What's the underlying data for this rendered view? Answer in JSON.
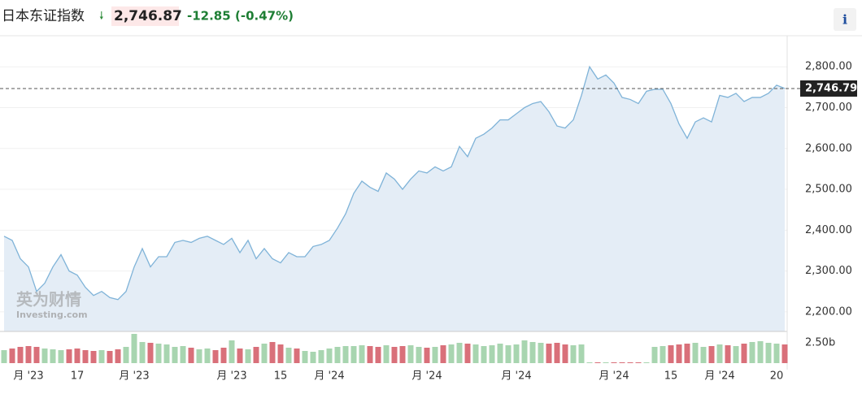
{
  "chart_data": {
    "type": "line",
    "title": "日本东证指数",
    "last": {
      "value": 2746.87,
      "label": "2,746.87"
    },
    "change": {
      "value": -12.85,
      "label": "-12.85"
    },
    "change_pct": {
      "value": -0.47,
      "label": "(-0.47%)"
    },
    "current_marker": {
      "value": 2746.79,
      "label": "2,746.79"
    },
    "info_button": "i",
    "watermark": [
      "英为财情",
      "Investing.com"
    ],
    "categories": [
      null,
      null,
      null,
      "月 '23",
      null,
      null,
      null,
      null,
      null,
      "17",
      null,
      null,
      null,
      null,
      null,
      null,
      "月 '23",
      null,
      null,
      null,
      null,
      null,
      null,
      null,
      null,
      null,
      null,
      null,
      "月 '23",
      null,
      null,
      null,
      null,
      null,
      "15",
      null,
      null,
      null,
      null,
      null,
      "月 '24",
      null,
      null,
      null,
      null,
      null,
      null,
      null,
      null,
      null,
      null,
      null,
      "月 '24",
      null,
      null,
      null,
      null,
      null,
      null,
      null,
      null,
      null,
      null,
      "月 '24",
      null,
      null,
      null,
      null,
      null,
      null,
      null,
      null,
      null,
      null,
      null,
      "月 '24",
      null,
      null,
      null,
      null,
      null,
      null,
      "15",
      null,
      null,
      null,
      null,
      null,
      "月 '24",
      null,
      null,
      null,
      null,
      null,
      null,
      "20",
      null
    ],
    "series": [
      {
        "color": "#7fb3d8",
        "fill": "#e4edf6",
        "values": [
          2385,
          2375,
          2330,
          2310,
          2250,
          2270,
          2310,
          2340,
          2300,
          2290,
          2260,
          2240,
          2250,
          2235,
          2230,
          2250,
          2310,
          2355,
          2310,
          2335,
          2335,
          2370,
          2375,
          2370,
          2380,
          2385,
          2375,
          2365,
          2380,
          2345,
          2375,
          2330,
          2355,
          2330,
          2320,
          2345,
          2335,
          2335,
          2360,
          2365,
          2375,
          2405,
          2440,
          2490,
          2520,
          2505,
          2495,
          2540,
          2525,
          2500,
          2525,
          2545,
          2540,
          2555,
          2545,
          2555,
          2605,
          2580,
          2625,
          2635,
          2650,
          2670,
          2670,
          2685,
          2700,
          2710,
          2715,
          2690,
          2655,
          2650,
          2670,
          2730,
          2800,
          2770,
          2780,
          2760,
          2725,
          2720,
          2710,
          2740,
          2745,
          2745,
          2710,
          2660,
          2625,
          2665,
          2675,
          2665,
          2730,
          2725,
          2735,
          2715,
          2725,
          2725,
          2735,
          2755,
          2747
        ]
      }
    ],
    "ylim": [
      2152,
      2876
    ],
    "yticks": [
      {
        "value": 2200,
        "label": "2,200.00"
      },
      {
        "value": 2300,
        "label": "2,300.00"
      },
      {
        "value": 2400,
        "label": "2,400.00"
      },
      {
        "value": 2500,
        "label": "2,500.00"
      },
      {
        "value": 2600,
        "label": "2,600.00"
      },
      {
        "value": 2700,
        "label": "2,700.00"
      },
      {
        "value": 2800,
        "label": "2,800.00"
      }
    ],
    "volume": {
      "up_color": "#a8d5b0",
      "down_color": "#d9707a",
      "ylim": [
        0,
        3.7
      ],
      "yticks": [
        {
          "value": 2.5,
          "label": "2.50b"
        }
      ],
      "values": [
        1.6,
        1.8,
        2.0,
        2.1,
        2.0,
        1.8,
        1.7,
        1.6,
        1.7,
        1.8,
        1.6,
        1.5,
        1.6,
        1.5,
        1.7,
        2.0,
        3.6,
        2.6,
        2.5,
        2.4,
        2.3,
        2.0,
        2.1,
        1.9,
        1.7,
        1.8,
        1.6,
        1.9,
        2.8,
        1.8,
        1.7,
        2.0,
        2.4,
        2.6,
        2.3,
        1.9,
        1.8,
        1.5,
        1.4,
        1.6,
        1.8,
        2.0,
        2.1,
        2.1,
        2.2,
        2.1,
        2.0,
        2.2,
        2.0,
        2.1,
        2.2,
        2.0,
        1.9,
        2.0,
        2.2,
        2.3,
        2.5,
        2.4,
        2.3,
        2.1,
        2.2,
        2.4,
        2.2,
        2.3,
        2.8,
        2.6,
        2.5,
        2.4,
        2.5,
        2.3,
        2.2,
        2.3,
        0.1,
        0.1,
        0.1,
        0.1,
        0.1,
        0.1,
        0.1,
        0.1,
        2.0,
        2.1,
        2.2,
        2.3,
        2.4,
        2.5,
        2.0,
        2.1,
        2.3,
        2.2,
        2.1,
        2.4,
        2.6,
        2.7,
        2.5,
        2.4,
        2.3
      ]
    }
  }
}
